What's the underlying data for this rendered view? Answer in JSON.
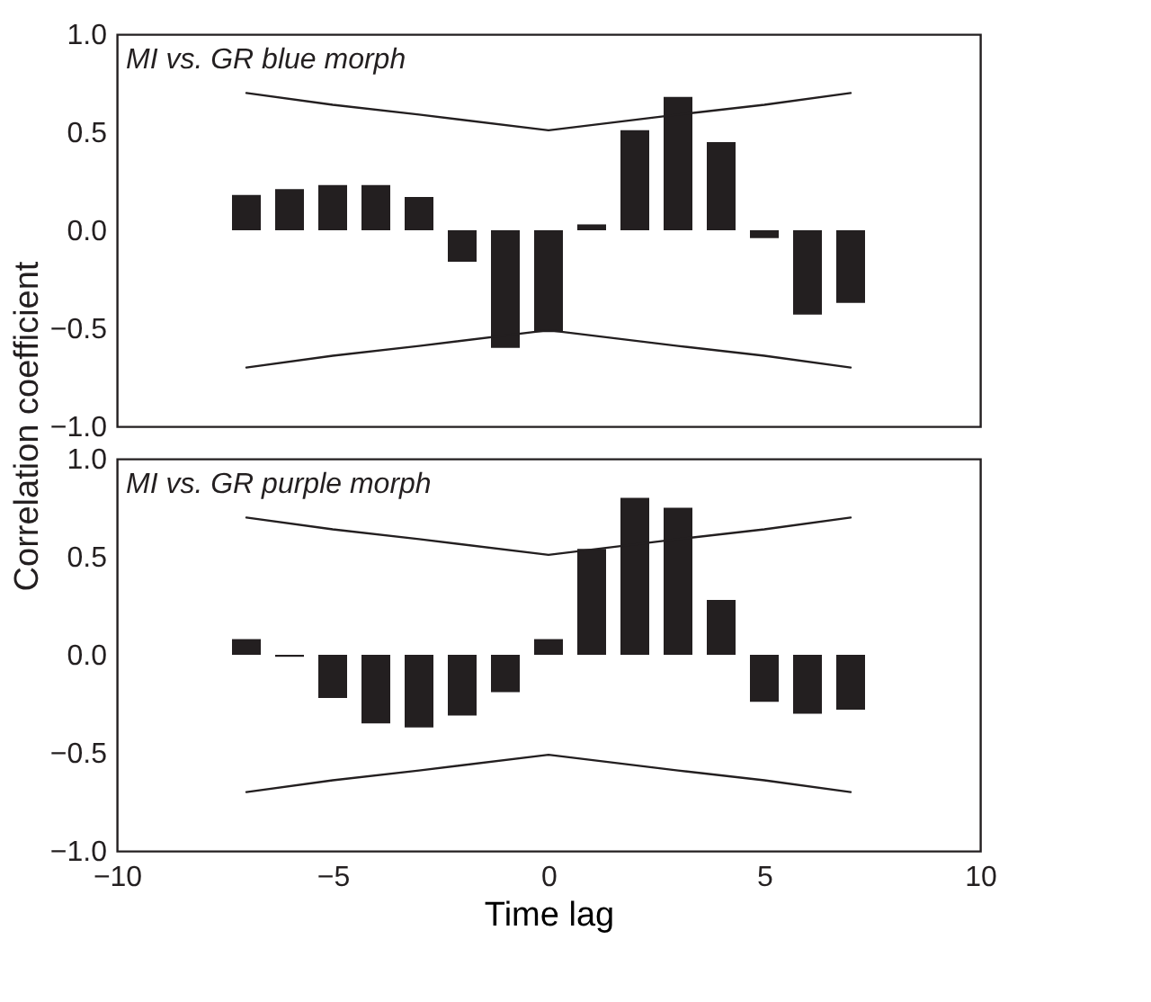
{
  "chart_data": [
    {
      "type": "bar",
      "title": "MI vs. GR blue morph",
      "ylabel": "Correlation coefficient",
      "x": [
        -7,
        -6,
        -5,
        -4,
        -3,
        -2,
        -1,
        0,
        1,
        2,
        3,
        4,
        5,
        6,
        7
      ],
      "series": [
        {
          "color": "#231f20",
          "values": [
            0.18,
            0.21,
            0.23,
            0.23,
            0.17,
            -0.16,
            -0.6,
            -0.52,
            0.03,
            0.51,
            0.68,
            0.45,
            -0.04,
            -0.43,
            -0.37
          ]
        },
        {
          "type": "line",
          "color": "#231f20",
          "x": [
            -7,
            -5,
            -3,
            0,
            3,
            5,
            7
          ],
          "values": [
            0.7,
            0.64,
            0.59,
            0.51,
            0.59,
            0.64,
            0.7
          ]
        },
        {
          "type": "line",
          "color": "#231f20",
          "x": [
            -7,
            -5,
            -3,
            0,
            3,
            5,
            7
          ],
          "values": [
            -0.7,
            -0.64,
            -0.59,
            -0.51,
            -0.59,
            -0.64,
            -0.7
          ]
        }
      ],
      "xlim": [
        -10,
        10
      ],
      "xticks": [
        {
          "value": -10,
          "label": null
        },
        {
          "value": -5,
          "label": null
        },
        {
          "value": 0,
          "label": null
        },
        {
          "value": 5,
          "label": null
        },
        {
          "value": 10,
          "label": null
        }
      ],
      "ylim": [
        -1,
        1
      ],
      "yticks": [
        {
          "value": -1,
          "label": "−1.0"
        },
        {
          "value": -0.5,
          "label": "−0.5"
        },
        {
          "value": 0,
          "label": "0.0"
        },
        {
          "value": 0.5,
          "label": "0.5"
        },
        {
          "value": 1,
          "label": "1.0"
        }
      ],
      "tick_labels": "y",
      "grid": false
    },
    {
      "type": "bar",
      "title": "MI vs. GR purple morph",
      "xlabel": "Time lag",
      "x": [
        -7,
        -6,
        -5,
        -4,
        -3,
        -2,
        -1,
        0,
        1,
        2,
        3,
        4,
        5,
        6,
        7
      ],
      "series": [
        {
          "color": "#231f20",
          "values": [
            0.08,
            -0.01,
            -0.22,
            -0.35,
            -0.37,
            -0.31,
            -0.19,
            0.08,
            0.54,
            0.8,
            0.75,
            0.28,
            -0.24,
            -0.3,
            -0.28
          ]
        },
        {
          "type": "line",
          "color": "#231f20",
          "x": [
            -7,
            -5,
            -3,
            0,
            3,
            5,
            7
          ],
          "values": [
            0.7,
            0.64,
            0.59,
            0.51,
            0.59,
            0.64,
            0.7
          ]
        },
        {
          "type": "line",
          "color": "#231f20",
          "x": [
            -7,
            -5,
            -3,
            0,
            3,
            5,
            7
          ],
          "values": [
            -0.7,
            -0.64,
            -0.59,
            -0.51,
            -0.59,
            -0.64,
            -0.7
          ]
        }
      ],
      "xlim": [
        -10,
        10
      ],
      "xticks": [
        {
          "value": -10,
          "label": "−10"
        },
        {
          "value": -5,
          "label": "−5"
        },
        {
          "value": 0,
          "label": "0"
        },
        {
          "value": 5,
          "label": "5"
        },
        {
          "value": 10,
          "label": "10"
        }
      ],
      "ylim": [
        -1,
        1
      ],
      "yticks": [
        {
          "value": -1,
          "label": "−1.0"
        },
        {
          "value": -0.5,
          "label": "−0.5"
        },
        {
          "value": 0,
          "label": "0.0"
        },
        {
          "value": 0.5,
          "label": "0.5"
        },
        {
          "value": 1,
          "label": "1.0"
        }
      ],
      "grid": false
    }
  ]
}
